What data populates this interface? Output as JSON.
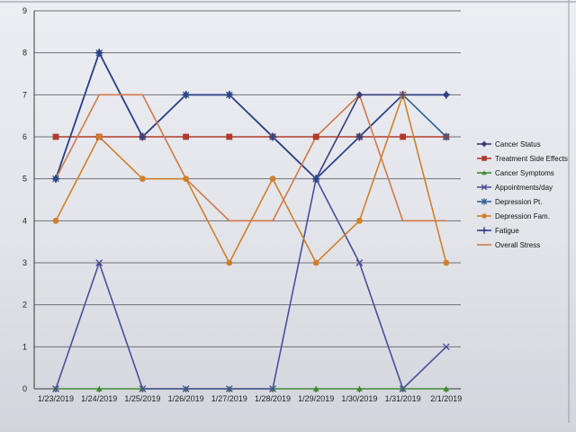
{
  "chart_data": {
    "type": "line",
    "title": "",
    "xlabel": "",
    "ylabel": "",
    "ylim": [
      0,
      9
    ],
    "yticks": [
      "0",
      "1",
      "2",
      "3",
      "4",
      "5",
      "6",
      "7",
      "8",
      "9"
    ],
    "grid": true,
    "legend_position": "right",
    "categories": [
      "1/23/2019",
      "1/24/2019",
      "1/25/2019",
      "1/26/2019",
      "1/27/2019",
      "1/28/2019",
      "1/29/2019",
      "1/30/2019",
      "1/31/2019",
      "2/1/2019"
    ],
    "series": [
      {
        "name": "Cancer Status",
        "color": "#3a3f7a",
        "marker": "diamond",
        "values": [
          5,
          8,
          6,
          7,
          7,
          6,
          5,
          7,
          7,
          7
        ]
      },
      {
        "name": "Treatment Side Effects",
        "color": "#b23a2a",
        "marker": "square",
        "values": [
          6,
          6,
          6,
          6,
          6,
          6,
          6,
          6,
          6,
          6
        ]
      },
      {
        "name": "Cancer Symptoms",
        "color": "#3e8a2e",
        "marker": "triangle",
        "values": [
          0,
          0,
          0,
          0,
          0,
          0,
          0,
          0,
          0,
          0
        ]
      },
      {
        "name": "Appointments/day",
        "color": "#4a4f9a",
        "marker": "x",
        "values": [
          0,
          3,
          0,
          0,
          0,
          0,
          5,
          3,
          0,
          1
        ]
      },
      {
        "name": "Depression Pt.",
        "color": "#2f5f9a",
        "marker": "star",
        "values": [
          5,
          8,
          6,
          7,
          7,
          6,
          5,
          6,
          7,
          6
        ]
      },
      {
        "name": "Depression Fam.",
        "color": "#d0802a",
        "marker": "circle",
        "values": [
          4,
          6,
          5,
          5,
          3,
          5,
          3,
          4,
          7,
          3
        ]
      },
      {
        "name": "Fatigue",
        "color": "#2c3f86",
        "marker": "plus",
        "values": [
          5,
          8,
          6,
          7,
          7,
          6,
          5,
          6,
          7,
          7
        ]
      },
      {
        "name": "Overall Stress",
        "color": "#cf7a4a",
        "marker": "none",
        "values": [
          5,
          7,
          7,
          5,
          4,
          4,
          6,
          7,
          4,
          4
        ]
      }
    ]
  }
}
